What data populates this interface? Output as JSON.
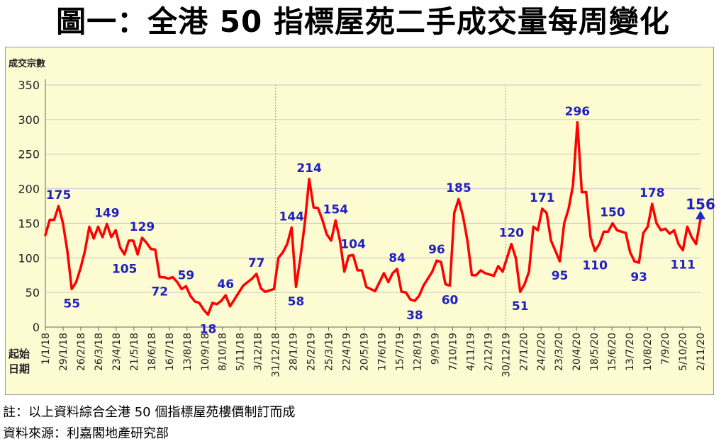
{
  "title": "圖一：全港 50 指標屋苑二手成交量每周變化",
  "notes": {
    "note1": "註：以上資料綜合全港 50 個指標屋苑樓價制訂而成",
    "source": "資料來源：利嘉閣地產研究部"
  },
  "chart_data": {
    "type": "line",
    "ylabel": "成交宗數",
    "xlabel": "起始日期",
    "ylim": [
      0,
      350
    ],
    "yticks": [
      0,
      50,
      100,
      150,
      200,
      250,
      300,
      350
    ],
    "grid": true,
    "line_color": "#ff0000",
    "label_color": "#2020c0",
    "xticks": [
      "1/1/18",
      "29/1/18",
      "26/2/18",
      "26/3/18",
      "23/4/18",
      "21/5/18",
      "18/6/18",
      "16/7/18",
      "13/8/18",
      "10/9/18",
      "8/10/18",
      "5/11/18",
      "3/12/18",
      "31/12/18",
      "28/1/19",
      "25/2/19",
      "25/3/19",
      "22/4/19",
      "20/5/19",
      "17/6/19",
      "15/7/19",
      "12/8/19",
      "9/9/19",
      "7/10/19",
      "4/11/19",
      "2/12/19",
      "30/12/19",
      "27/1/20",
      "24/2/20",
      "23/3/20",
      "20/4/20",
      "18/5/20",
      "15/6/20",
      "13/7/20",
      "10/8/20",
      "7/9/20",
      "5/10/20",
      "2/11/20"
    ],
    "values": [
      133,
      155,
      155,
      175,
      150,
      110,
      55,
      65,
      85,
      110,
      145,
      128,
      145,
      130,
      149,
      130,
      140,
      115,
      105,
      125,
      125,
      105,
      129,
      122,
      113,
      112,
      72,
      72,
      70,
      72,
      65,
      55,
      59,
      45,
      37,
      35,
      25,
      18,
      35,
      33,
      38,
      46,
      30,
      40,
      50,
      60,
      65,
      70,
      77,
      56,
      51,
      53,
      55,
      100,
      108,
      120,
      144,
      58,
      100,
      150,
      214,
      173,
      172,
      155,
      134,
      125,
      154,
      125,
      80,
      103,
      104,
      82,
      82,
      58,
      55,
      52,
      65,
      78,
      65,
      78,
      84,
      51,
      50,
      40,
      38,
      45,
      60,
      70,
      80,
      96,
      94,
      62,
      60,
      165,
      185,
      160,
      125,
      75,
      75,
      82,
      78,
      76,
      74,
      88,
      80,
      100,
      120,
      100,
      51,
      62,
      80,
      145,
      140,
      171,
      165,
      125,
      110,
      95,
      150,
      171,
      205,
      296,
      195,
      195,
      130,
      110,
      120,
      138,
      138,
      150,
      140,
      138,
      136,
      108,
      95,
      93,
      136,
      145,
      178,
      150,
      140,
      142,
      135,
      140,
      120,
      111,
      145,
      130,
      120,
      156
    ],
    "data_labels": [
      {
        "x": "1/1/18",
        "i": 3,
        "text": "175"
      },
      {
        "x": "29/1/18",
        "i": 6,
        "text": "55"
      },
      {
        "x": "26/3/18",
        "i": 14,
        "text": "149"
      },
      {
        "x": "23/4/18",
        "i": 18,
        "text": "105"
      },
      {
        "x": "21/5/18",
        "i": 22,
        "text": "129"
      },
      {
        "x": "18/6/18",
        "i": 26,
        "text": "72"
      },
      {
        "x": "13/8/18",
        "i": 32,
        "text": "59"
      },
      {
        "x": "10/9/18",
        "i": 37,
        "text": "18"
      },
      {
        "x": "8/10/18",
        "i": 41,
        "text": "46"
      },
      {
        "x": "3/12/18",
        "i": 48,
        "text": "77"
      },
      {
        "x": "28/1/19",
        "i": 56,
        "text": "144"
      },
      {
        "x": "28/1/19",
        "i": 57,
        "text": "58"
      },
      {
        "x": "25/2/19",
        "i": 60,
        "text": "214"
      },
      {
        "x": "25/3/19",
        "i": 66,
        "text": "154"
      },
      {
        "x": "22/4/19",
        "i": 70,
        "text": "104"
      },
      {
        "x": "15/7/19",
        "i": 80,
        "text": "84"
      },
      {
        "x": "12/8/19",
        "i": 84,
        "text": "38"
      },
      {
        "x": "9/9/19",
        "i": 89,
        "text": "96"
      },
      {
        "x": "7/10/19",
        "i": 92,
        "text": "60"
      },
      {
        "x": "7/10/19",
        "i": 94,
        "text": "185"
      },
      {
        "x": "30/12/19",
        "i": 106,
        "text": "120"
      },
      {
        "x": "27/1/20",
        "i": 108,
        "text": "51"
      },
      {
        "x": "24/2/20",
        "i": 113,
        "text": "171"
      },
      {
        "x": "23/3/20",
        "i": 117,
        "text": "95"
      },
      {
        "x": "20/4/20",
        "i": 121,
        "text": "296"
      },
      {
        "x": "18/5/20",
        "i": 125,
        "text": "110"
      },
      {
        "x": "15/6/20",
        "i": 129,
        "text": "150"
      },
      {
        "x": "10/8/20",
        "i": 135,
        "text": "93"
      },
      {
        "x": "10/8/20",
        "i": 138,
        "text": "178"
      },
      {
        "x": "5/10/20",
        "i": 145,
        "text": "111"
      },
      {
        "x": "2/11/20",
        "i": 149,
        "text": "156"
      }
    ],
    "year_dividers": [
      "31/12/18",
      "30/12/19"
    ]
  }
}
